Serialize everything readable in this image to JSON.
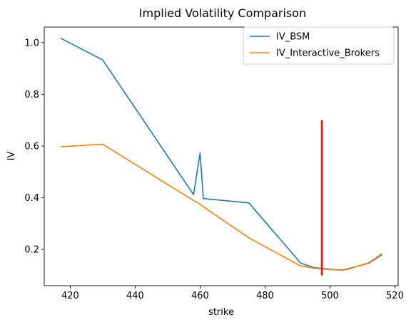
{
  "chart_data": {
    "type": "line",
    "title": "Implied Volatility Comparison",
    "xlabel": "strike",
    "ylabel": "IV",
    "xlim": [
      412,
      521
    ],
    "ylim": [
      0.06,
      1.06
    ],
    "xticks": [
      420,
      440,
      460,
      480,
      500,
      520
    ],
    "yticks": [
      0.2,
      0.4,
      0.6,
      0.8,
      1.0
    ],
    "xtick_labels": [
      "420",
      "440",
      "460",
      "480",
      "500",
      "520"
    ],
    "ytick_labels": [
      "0.2",
      "0.4",
      "0.6",
      "0.8",
      "1.0"
    ],
    "grid": false,
    "legend_position": "top-right",
    "series": [
      {
        "name": "IV_BSM",
        "color": "#1f77b4",
        "x": [
          417,
          430,
          458,
          460,
          461,
          475,
          491,
          495,
          500,
          504,
          506,
          512,
          516
        ],
        "y": [
          1.017,
          0.933,
          0.412,
          0.573,
          0.397,
          0.38,
          0.147,
          0.13,
          0.123,
          0.121,
          0.127,
          0.147,
          0.18
        ]
      },
      {
        "name": "IV_Interactive_Brokers",
        "color": "#ff7f0e",
        "x": [
          417,
          430,
          458,
          460,
          461,
          475,
          491,
          495,
          500,
          504,
          506,
          512,
          516
        ],
        "y": [
          0.597,
          0.607,
          0.389,
          0.375,
          0.365,
          0.245,
          0.136,
          0.128,
          0.122,
          0.12,
          0.125,
          0.149,
          0.184
        ]
      }
    ],
    "annotations": [
      {
        "type": "vertical-line",
        "x": 497.5,
        "y_from": 0.1,
        "y_to": 0.7,
        "color": "#ff0000"
      }
    ]
  }
}
